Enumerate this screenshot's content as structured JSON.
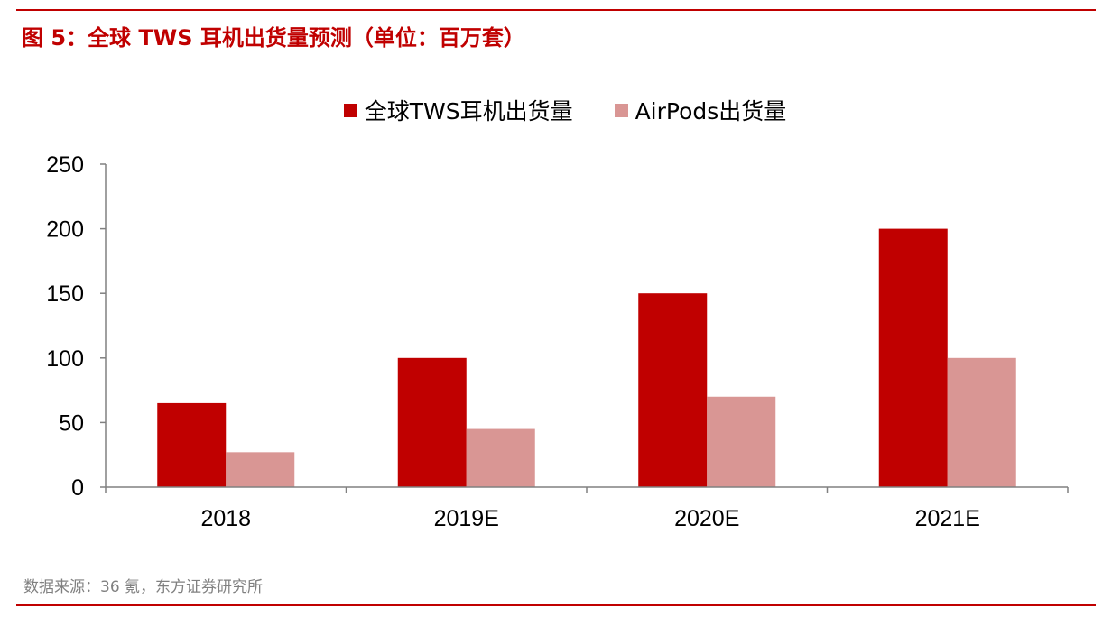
{
  "figure": {
    "title": "图 5：全球 TWS 耳机出货量预测（单位：百万套）",
    "source": "数据来源：36 氪，东方证券研究所",
    "accent_color": "#c00000"
  },
  "chart_data": {
    "type": "bar",
    "title": "图 5：全球 TWS 耳机出货量预测（单位：百万套）",
    "xlabel": "",
    "ylabel": "",
    "categories": [
      "2018",
      "2019E",
      "2020E",
      "2021E"
    ],
    "series": [
      {
        "name": "全球TWS耳机出货量",
        "values": [
          65,
          100,
          150,
          200
        ],
        "color": "#c00000"
      },
      {
        "name": "AirPods出货量",
        "values": [
          27,
          45,
          70,
          100
        ],
        "color": "#d99694"
      }
    ],
    "ylim": [
      0,
      250
    ],
    "yticks": [
      "0",
      "50",
      "100",
      "150",
      "200",
      "250"
    ],
    "grid": false,
    "legend": "top-center"
  }
}
